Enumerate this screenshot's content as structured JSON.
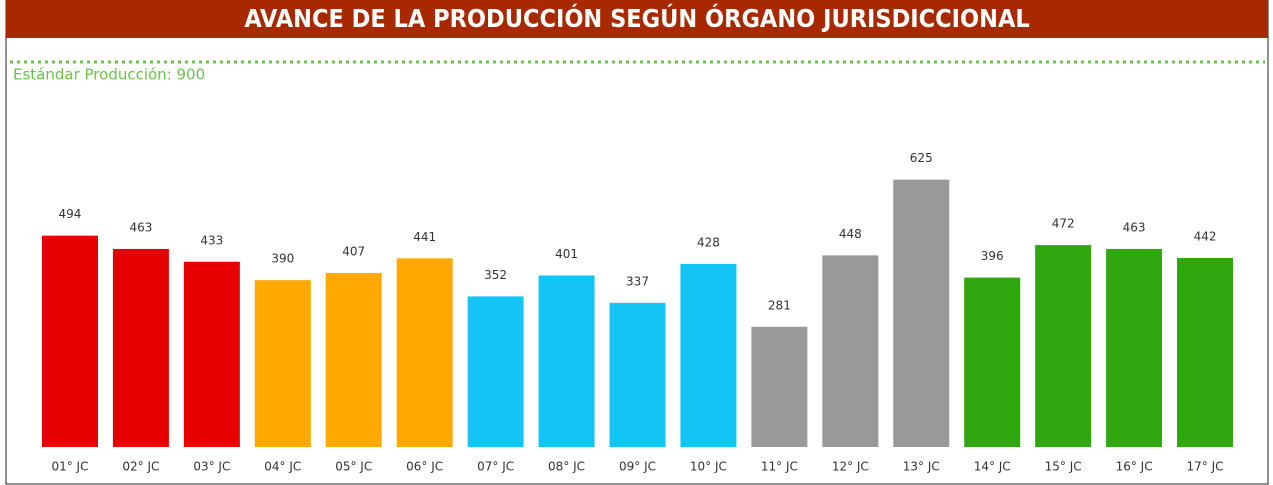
{
  "chart_data": {
    "type": "bar",
    "title": "AVANCE DE LA PRODUCCIÓN SEGÚN ÓRGANO JURISDICCIONAL",
    "categories": [
      "01° JC",
      "02° JC",
      "03° JC",
      "04° JC",
      "05° JC",
      "06° JC",
      "07° JC",
      "08° JC",
      "09° JC",
      "10° JC",
      "11° JC",
      "12° JC",
      "13° JC",
      "14° JC",
      "15° JC",
      "16° JC",
      "17° JC"
    ],
    "values": [
      494,
      463,
      433,
      390,
      407,
      441,
      352,
      401,
      337,
      428,
      281,
      448,
      625,
      396,
      472,
      463,
      442
    ],
    "colors": [
      "#e60000",
      "#e60000",
      "#e60000",
      "#ffa800",
      "#ffa800",
      "#ffa800",
      "#12c5f5",
      "#12c5f5",
      "#12c5f5",
      "#12c5f5",
      "#999999",
      "#999999",
      "#999999",
      "#2ea80e",
      "#2ea80e",
      "#2ea80e",
      "#2ea80e"
    ],
    "ylim": [
      0,
      900
    ],
    "reference_line": {
      "value": 900,
      "label": "Estándar Producción: 900",
      "color": "#6cc24a"
    }
  }
}
